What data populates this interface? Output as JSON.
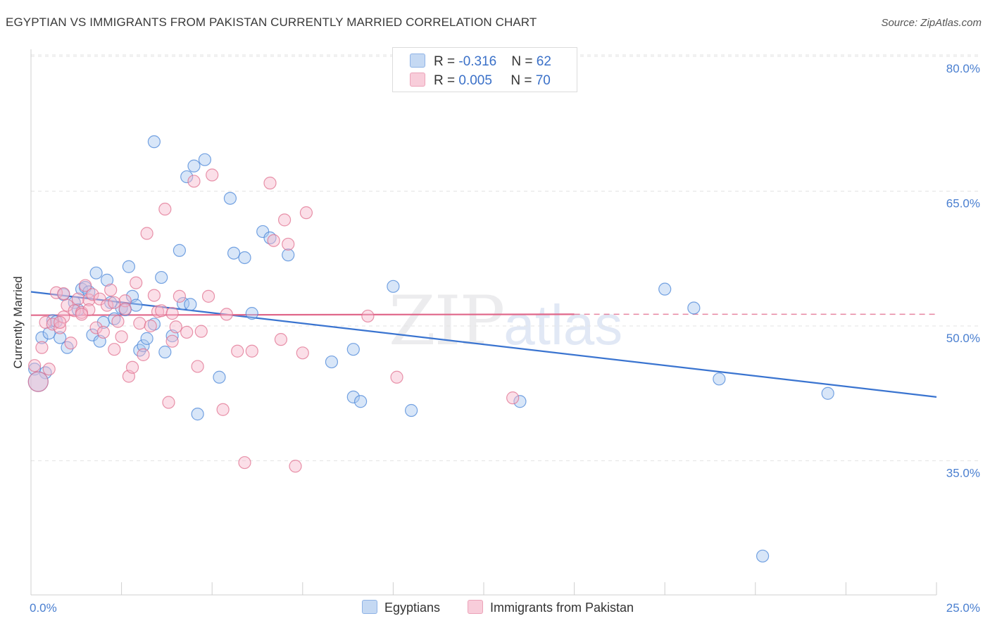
{
  "title": "EGYPTIAN VS IMMIGRANTS FROM PAKISTAN CURRENTLY MARRIED CORRELATION CHART",
  "source": "Source: ZipAtlas.com",
  "watermark": {
    "zip": "ZIP",
    "atlas": "atlas"
  },
  "legend": {
    "rows": [
      {
        "r_label": "R = ",
        "r_value": "-0.316",
        "n_label": "N = ",
        "n_value": "62",
        "color": "#a9c8f0"
      },
      {
        "r_label": "R = ",
        "r_value": "0.005",
        "n_label": "N = ",
        "n_value": "70",
        "color": "#f6b8cb"
      }
    ]
  },
  "bottom_legend": [
    {
      "label": "Egyptians",
      "color": "#a9c8f0"
    },
    {
      "label": "Immigrants from Pakistan",
      "color": "#f6b8cb"
    }
  ],
  "chart_data": {
    "type": "scatter",
    "ylabel": "Currently Married",
    "xlabel": "",
    "xlim": [
      0,
      25
    ],
    "ylim": [
      22,
      83
    ],
    "x_tick_labels": [
      {
        "value": 0,
        "label": "0.0%"
      },
      {
        "value": 25,
        "label": "25.0%"
      }
    ],
    "y_tick_labels": [
      {
        "value": 80,
        "label": "80.0%"
      },
      {
        "value": 65,
        "label": "65.0%"
      },
      {
        "value": 50,
        "label": "50.0%"
      },
      {
        "value": 35,
        "label": "35.0%"
      }
    ],
    "grid": true,
    "series": [
      {
        "name": "Egyptians",
        "color": "#4a86d8",
        "fill": "#a9c8f0",
        "trend": {
          "x": [
            0,
            25
          ],
          "y": [
            53.8,
            42.1
          ],
          "dashed_from": null
        },
        "points": [
          [
            0.1,
            45.2
          ],
          [
            0.3,
            48.7
          ],
          [
            0.4,
            44.8
          ],
          [
            0.5,
            49.2
          ],
          [
            0.6,
            50.6
          ],
          [
            0.7,
            50.5
          ],
          [
            0.8,
            48.7
          ],
          [
            0.9,
            53.5
          ],
          [
            1.0,
            47.6
          ],
          [
            1.2,
            52.6
          ],
          [
            1.3,
            51.8
          ],
          [
            1.4,
            54.1
          ],
          [
            1.5,
            54.3
          ],
          [
            1.6,
            53.8
          ],
          [
            1.7,
            49.0
          ],
          [
            1.8,
            55.9
          ],
          [
            1.9,
            48.3
          ],
          [
            2.0,
            50.4
          ],
          [
            2.1,
            55.1
          ],
          [
            2.2,
            52.6
          ],
          [
            2.3,
            50.8
          ],
          [
            2.5,
            52.0
          ],
          [
            2.6,
            51.8
          ],
          [
            2.7,
            56.6
          ],
          [
            2.8,
            53.3
          ],
          [
            2.9,
            52.3
          ],
          [
            3.0,
            47.3
          ],
          [
            3.1,
            47.8
          ],
          [
            3.2,
            48.6
          ],
          [
            3.4,
            50.2
          ],
          [
            3.4,
            70.5
          ],
          [
            3.6,
            55.4
          ],
          [
            3.7,
            47.1
          ],
          [
            3.9,
            48.9
          ],
          [
            4.1,
            58.4
          ],
          [
            4.2,
            52.5
          ],
          [
            4.3,
            66.6
          ],
          [
            4.4,
            52.4
          ],
          [
            4.5,
            67.8
          ],
          [
            4.6,
            40.2
          ],
          [
            4.8,
            68.5
          ],
          [
            5.2,
            44.3
          ],
          [
            5.5,
            64.2
          ],
          [
            5.6,
            58.1
          ],
          [
            5.9,
            57.6
          ],
          [
            6.1,
            51.4
          ],
          [
            6.4,
            60.5
          ],
          [
            6.6,
            59.8
          ],
          [
            7.1,
            57.9
          ],
          [
            8.3,
            46.0
          ],
          [
            8.9,
            47.4
          ],
          [
            8.9,
            42.1
          ],
          [
            9.1,
            41.6
          ],
          [
            10.0,
            54.4
          ],
          [
            10.5,
            40.6
          ],
          [
            13.5,
            41.6
          ],
          [
            17.5,
            54.1
          ],
          [
            18.3,
            52.0
          ],
          [
            19.0,
            44.1
          ],
          [
            20.2,
            24.4
          ],
          [
            22.0,
            42.5
          ],
          [
            0.2,
            43.8
          ]
        ]
      },
      {
        "name": "Immigrants from Pakistan",
        "color": "#e0708f",
        "fill": "#f6b8cb",
        "trend": {
          "x": [
            0,
            15
          ],
          "y": [
            51.2,
            51.3
          ],
          "dashed_to": 25
        },
        "points": [
          [
            0.1,
            45.6
          ],
          [
            0.2,
            43.8
          ],
          [
            0.3,
            47.6
          ],
          [
            0.4,
            50.4
          ],
          [
            0.5,
            45.2
          ],
          [
            0.6,
            50.2
          ],
          [
            0.7,
            53.7
          ],
          [
            0.8,
            49.8
          ],
          [
            0.9,
            51.0
          ],
          [
            1.0,
            52.3
          ],
          [
            1.1,
            48.1
          ],
          [
            1.2,
            51.7
          ],
          [
            1.3,
            53.0
          ],
          [
            1.4,
            51.5
          ],
          [
            1.5,
            54.5
          ],
          [
            1.6,
            52.9
          ],
          [
            1.7,
            53.5
          ],
          [
            1.8,
            49.8
          ],
          [
            1.9,
            53.0
          ],
          [
            2.0,
            49.3
          ],
          [
            2.1,
            52.3
          ],
          [
            2.2,
            54.0
          ],
          [
            2.3,
            47.4
          ],
          [
            2.4,
            50.5
          ],
          [
            2.5,
            48.8
          ],
          [
            2.6,
            52.8
          ],
          [
            2.7,
            44.4
          ],
          [
            2.8,
            45.4
          ],
          [
            2.9,
            54.8
          ],
          [
            3.0,
            50.3
          ],
          [
            3.1,
            46.8
          ],
          [
            3.2,
            60.3
          ],
          [
            3.3,
            50.0
          ],
          [
            3.4,
            53.4
          ],
          [
            3.5,
            51.6
          ],
          [
            3.6,
            51.7
          ],
          [
            3.7,
            63.0
          ],
          [
            3.8,
            41.5
          ],
          [
            3.9,
            51.4
          ],
          [
            4.0,
            49.9
          ],
          [
            4.1,
            53.3
          ],
          [
            4.3,
            49.3
          ],
          [
            4.5,
            66.1
          ],
          [
            4.6,
            45.5
          ],
          [
            4.7,
            49.4
          ],
          [
            4.9,
            53.3
          ],
          [
            5.0,
            66.8
          ],
          [
            5.3,
            40.7
          ],
          [
            5.4,
            51.3
          ],
          [
            5.7,
            47.2
          ],
          [
            5.9,
            34.8
          ],
          [
            6.1,
            47.2
          ],
          [
            6.6,
            65.9
          ],
          [
            6.7,
            59.5
          ],
          [
            6.9,
            48.5
          ],
          [
            7.0,
            61.8
          ],
          [
            7.1,
            59.1
          ],
          [
            7.3,
            34.4
          ],
          [
            7.5,
            47.0
          ],
          [
            7.6,
            62.6
          ],
          [
            9.3,
            51.1
          ],
          [
            10.1,
            44.3
          ],
          [
            13.3,
            42.0
          ],
          [
            1.6,
            51.8
          ],
          [
            2.6,
            51.9
          ],
          [
            0.8,
            50.4
          ],
          [
            3.9,
            48.3
          ],
          [
            2.3,
            52.6
          ],
          [
            1.4,
            51.3
          ],
          [
            0.9,
            53.6
          ]
        ]
      }
    ]
  }
}
